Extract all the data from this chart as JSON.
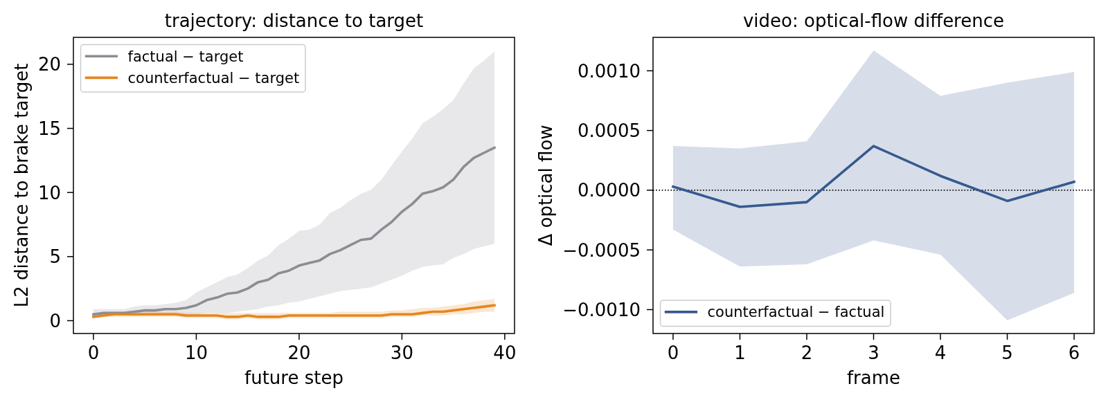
{
  "chart_data": [
    {
      "type": "line",
      "title": "trajectory: distance to target",
      "xlabel": "future step",
      "ylabel": "L2 distance to brake target",
      "x": [
        0,
        1,
        2,
        3,
        4,
        5,
        6,
        7,
        8,
        9,
        10,
        11,
        12,
        13,
        14,
        15,
        16,
        17,
        18,
        19,
        20,
        21,
        22,
        23,
        24,
        25,
        26,
        27,
        28,
        29,
        30,
        31,
        32,
        33,
        34,
        35,
        36,
        37,
        38,
        39
      ],
      "series": [
        {
          "name": "factual − target",
          "color": "#8c8c94",
          "values": [
            0.5,
            0.6,
            0.6,
            0.6,
            0.7,
            0.8,
            0.8,
            0.9,
            0.9,
            1.0,
            1.2,
            1.6,
            1.8,
            2.1,
            2.2,
            2.5,
            3.0,
            3.2,
            3.7,
            3.9,
            4.3,
            4.5,
            4.7,
            5.2,
            5.5,
            5.9,
            6.3,
            6.4,
            7.1,
            7.7,
            8.5,
            9.1,
            9.9,
            10.1,
            10.4,
            11.0,
            12.0,
            12.7,
            13.1,
            13.5
          ],
          "lower": [
            0.3,
            0.4,
            0.4,
            0.4,
            0.4,
            0.4,
            0.4,
            0.5,
            0.5,
            0.5,
            0.5,
            0.6,
            0.6,
            0.6,
            0.7,
            0.8,
            0.9,
            1.1,
            1.2,
            1.4,
            1.5,
            1.7,
            1.9,
            2.1,
            2.3,
            2.4,
            2.5,
            2.6,
            2.9,
            3.2,
            3.5,
            3.9,
            4.2,
            4.3,
            4.4,
            4.9,
            5.2,
            5.6,
            5.8,
            6.0
          ],
          "upper": [
            0.9,
            0.9,
            0.9,
            0.9,
            1.1,
            1.2,
            1.2,
            1.3,
            1.4,
            1.6,
            2.2,
            2.6,
            3.0,
            3.4,
            3.6,
            4.1,
            4.7,
            5.1,
            5.9,
            6.4,
            7.0,
            7.1,
            7.5,
            8.4,
            8.8,
            9.4,
            9.9,
            10.2,
            11.0,
            12.1,
            13.2,
            14.2,
            15.4,
            15.9,
            16.5,
            17.2,
            18.5,
            19.7,
            20.3,
            21.0
          ]
        },
        {
          "name": "counterfactual − target",
          "color": "#e5861f",
          "values": [
            0.3,
            0.4,
            0.5,
            0.5,
            0.5,
            0.5,
            0.5,
            0.5,
            0.5,
            0.4,
            0.4,
            0.4,
            0.4,
            0.3,
            0.3,
            0.4,
            0.3,
            0.3,
            0.3,
            0.4,
            0.4,
            0.4,
            0.4,
            0.4,
            0.4,
            0.4,
            0.4,
            0.4,
            0.4,
            0.5,
            0.5,
            0.5,
            0.6,
            0.7,
            0.7,
            0.8,
            0.9,
            1.0,
            1.1,
            1.2
          ],
          "lower": [
            0.2,
            0.3,
            0.3,
            0.3,
            0.3,
            0.3,
            0.3,
            0.3,
            0.3,
            0.2,
            0.2,
            0.2,
            0.2,
            0.1,
            0.1,
            0.2,
            0.1,
            0.1,
            0.1,
            0.2,
            0.2,
            0.2,
            0.2,
            0.2,
            0.2,
            0.2,
            0.2,
            0.2,
            0.2,
            0.3,
            0.3,
            0.3,
            0.4,
            0.4,
            0.4,
            0.5,
            0.5,
            0.6,
            0.7,
            0.7
          ],
          "upper": [
            0.5,
            0.6,
            0.7,
            0.7,
            0.7,
            0.7,
            0.7,
            0.7,
            0.7,
            0.6,
            0.6,
            0.6,
            0.6,
            0.6,
            0.6,
            0.6,
            0.6,
            0.6,
            0.6,
            0.6,
            0.6,
            0.6,
            0.6,
            0.6,
            0.7,
            0.7,
            0.7,
            0.7,
            0.7,
            0.8,
            0.8,
            0.9,
            1.0,
            1.0,
            1.1,
            1.2,
            1.3,
            1.5,
            1.6,
            1.7
          ]
        }
      ],
      "xlim": [
        -1.95,
        40.95
      ],
      "ylim": [
        -1.0,
        22.1
      ],
      "xticks": [
        0,
        10,
        20,
        30,
        40
      ],
      "yticks": [
        0,
        5,
        10,
        15,
        20
      ],
      "legend": "top left"
    },
    {
      "type": "line",
      "title": "video: optical-flow difference",
      "xlabel": "frame",
      "ylabel": "Δ optical flow",
      "x": [
        0,
        1,
        2,
        3,
        4,
        5,
        6
      ],
      "series": [
        {
          "name": "counterfactual − factual",
          "color": "#36598f",
          "values": [
            3e-05,
            -0.00014,
            -0.0001,
            0.00037,
            0.00012,
            -9e-05,
            7e-05
          ],
          "lower": [
            -0.00033,
            -0.00064,
            -0.00062,
            -0.00042,
            -0.00054,
            -0.00109,
            -0.00086
          ],
          "upper": [
            0.00037,
            0.00035,
            0.00041,
            0.00117,
            0.00079,
            0.0009,
            0.00099
          ]
        }
      ],
      "xlim": [
        -0.3,
        6.3
      ],
      "ylim": [
        -0.0012,
        0.00128
      ],
      "xticks": [
        0,
        1,
        2,
        3,
        4,
        5,
        6
      ],
      "yticks": [
        {
          "value": -0.001,
          "label": "−0.0010"
        },
        {
          "value": -0.0005,
          "label": "−0.0005"
        },
        {
          "value": 0,
          "label": "0.0000"
        },
        {
          "value": 0.0005,
          "label": "0.0005"
        },
        {
          "value": 0.001,
          "label": "0.0010"
        }
      ],
      "ref_lines": [
        {
          "axis": "y",
          "value": 0,
          "color": "#000000",
          "line_style": "dotted"
        }
      ],
      "legend": "bottom left"
    }
  ]
}
